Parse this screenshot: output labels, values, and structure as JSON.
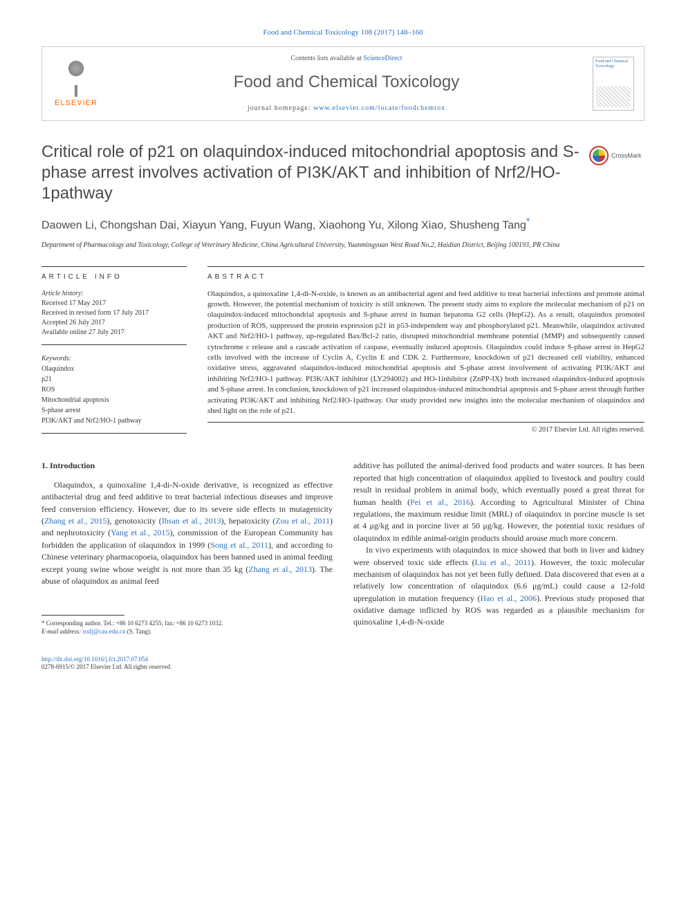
{
  "citation": "Food and Chemical Toxicology 108 (2017) 148–160",
  "header": {
    "publisher": "ELSEVIER",
    "contents_prefix": "Contents lists available at ",
    "contents_link": "ScienceDirect",
    "journal": "Food and Chemical Toxicology",
    "homepage_prefix": "journal homepage: ",
    "homepage_url": "www.elsevier.com/locate/foodchemtox",
    "cover_text": "Food and Chemical Toxicology"
  },
  "crossmark": "CrossMark",
  "title": "Critical role of p21 on olaquindox-induced mitochondrial apoptosis and S-phase arrest involves activation of PI3K/AKT and inhibition of Nrf2/HO-1pathway",
  "authors": "Daowen Li, Chongshan Dai, Xiayun Yang, Fuyun Wang, Xiaohong Yu, Xilong Xiao, Shusheng Tang",
  "corr_mark": "*",
  "affiliation": "Department of Pharmacology and Toxicology, College of Veterinary Medicine, China Agricultural University, Yuanmingyuan West Road No.2, Haidian District, Beijing 100193, PR China",
  "info_head": "ARTICLE INFO",
  "abstract_head": "ABSTRACT",
  "history": {
    "label": "Article history:",
    "received": "Received 17 May 2017",
    "revised": "Received in revised form 17 July 2017",
    "accepted": "Accepted 26 July 2017",
    "online": "Available online 27 July 2017"
  },
  "keywords": {
    "label": "Keywords:",
    "items": [
      "Olaquindox",
      "p21",
      "ROS",
      "Mitochondrial apoptosis",
      "S-phase arrest",
      "PI3K/AKT and Nrf2/HO-1 pathway"
    ]
  },
  "abstract": "Olaquindox, a quinoxaline 1,4-di-N-oxide, is known as an antibacterial agent and feed additive to treat bacterial infections and promote animal growth. However, the potential mechanism of toxicity is still unknown. The present study aims to explore the molecular mechanism of p21 on olaquindox-induced mitochondrial apoptosis and S-phase arrest in human hepatoma G2 cells (HepG2). As a result, olaquindox promoted production of ROS, suppressed the protein expression p21 in p53-independent way and phosphorylated p21. Meanwhile, olaquindox activated AKT and Nrf2/HO-1 pathway, up-regulated Bax/Bcl-2 ratio, disrupted mitochondrial membrane potential (MMP) and subsequently caused cytochrome c release and a cascade activation of caspase, eventually induced apoptosis. Olaquindox could induce S-phase arrest in HepG2 cells involved with the increase of Cyclin A, Cyclin E and CDK 2. Furthermore, knockdown of p21 decreased cell viability, enhanced oxidative stress, aggravated olaquindox-induced mitochondrial apoptosis and S-phase arrest involvement of activating PI3K/AKT and inhibiting Nrf2/HO-1 pathway. PI3K/AKT inhibitor (LY294002) and HO-1inhibitor (ZnPP-IX) both increased olaquindox-induced apoptosis and S-phase arrest. In conclusion, knockdown of p21 increased olaquindox-induced mitochondrial apoptosis and S-phase arrest through further activating PI3K/AKT and inhibiting Nrf2/HO-1pathway. Our study provided new insights into the molecular mechanism of olaquindox and shed light on the role of p21.",
  "copyright": "© 2017 Elsevier Ltd. All rights reserved.",
  "intro_head": "1. Introduction",
  "intro_p1_a": "Olaquindox, a quinoxaline 1,4-di-N-oxide derivative, is recognized as effective antibacterial drug and feed additive to treat bacterial infectious diseases and improve feed conversion efficiency. However, due to its severe side effects in mutagenicity (",
  "intro_p1_b": "), genotoxicity (",
  "intro_p1_c": "), hepatoxicity (",
  "intro_p1_d": ") and nephrotoxicity (",
  "intro_p1_e": "), commission of the European Community has forbidden the application of olaquindox in 1999 (",
  "intro_p1_f": "), and according to Chinese veterinary pharmacopoeia, olaquindox has been banned used in animal feeding except young swine whose weight is not more than 35 kg (",
  "intro_p1_g": "). The abuse of olaquindox as animal feed",
  "refs": {
    "zhang2015": "Zhang et al., 2015",
    "ihsan2013": "Ihsan et al., 2013",
    "zou2011": "Zou et al., 2011",
    "yang2015": "Yang et al., 2015",
    "song2011": "Song et al., 2011",
    "zhang2013": "Zhang et al., 2013",
    "pei2016": "Pei et al., 2016",
    "liu2011": "Liu et al., 2011",
    "hao2006": "Hao et al., 2006"
  },
  "col2_p1_a": "additive has polluted the animal-derived food products and water sources. It has been reported that high concentration of olaquindox applied to livestock and poultry could result in residual problem in animal body, which eventually posed a great threat for human health (",
  "col2_p1_b": "). According to Agricultural Minister of China regulations, the maximum residue limit (MRL) of olaquindox in porcine muscle is set at 4 μg/kg and in porcine liver at 50 μg/kg. However, the potential toxic residues of olaquindox in edible animal-origin products should arouse much more concern.",
  "col2_p2_a": "In vivo experiments with olaquindox in mice showed that both in liver and kidney were observed toxic side effects (",
  "col2_p2_b": "). However, the toxic molecular mechanism of olaquindox has not yet been fully defined. Data discovered that even at a relatively low concentration of olaquindox (6.6 μg/mL) could cause a 12-fold upregulation in mutation frequency (",
  "col2_p2_c": "). Previous study proposed that oxidative damage inflicted by ROS was regarded as a plausible mechanism for quinoxaline 1,4-di-N-oxide",
  "footnote": {
    "line1": "* Corresponding author. Tel.: +86 10 6273 4255; fax: +86 10 6273 1032.",
    "line2_a": "E-mail address: ",
    "line2_b": " (S. Tang).",
    "email": "tssfj@cau.edu.cn"
  },
  "bottom": {
    "doi": "http://dx.doi.org/10.1016/j.fct.2017.07.054",
    "issn": "0278-6915/© 2017 Elsevier Ltd. All rights reserved."
  },
  "colors": {
    "link": "#2a6ebb",
    "elsevier_orange": "#ff6600",
    "text": "#333333",
    "heading": "#4a4a4a",
    "border": "#333333"
  }
}
